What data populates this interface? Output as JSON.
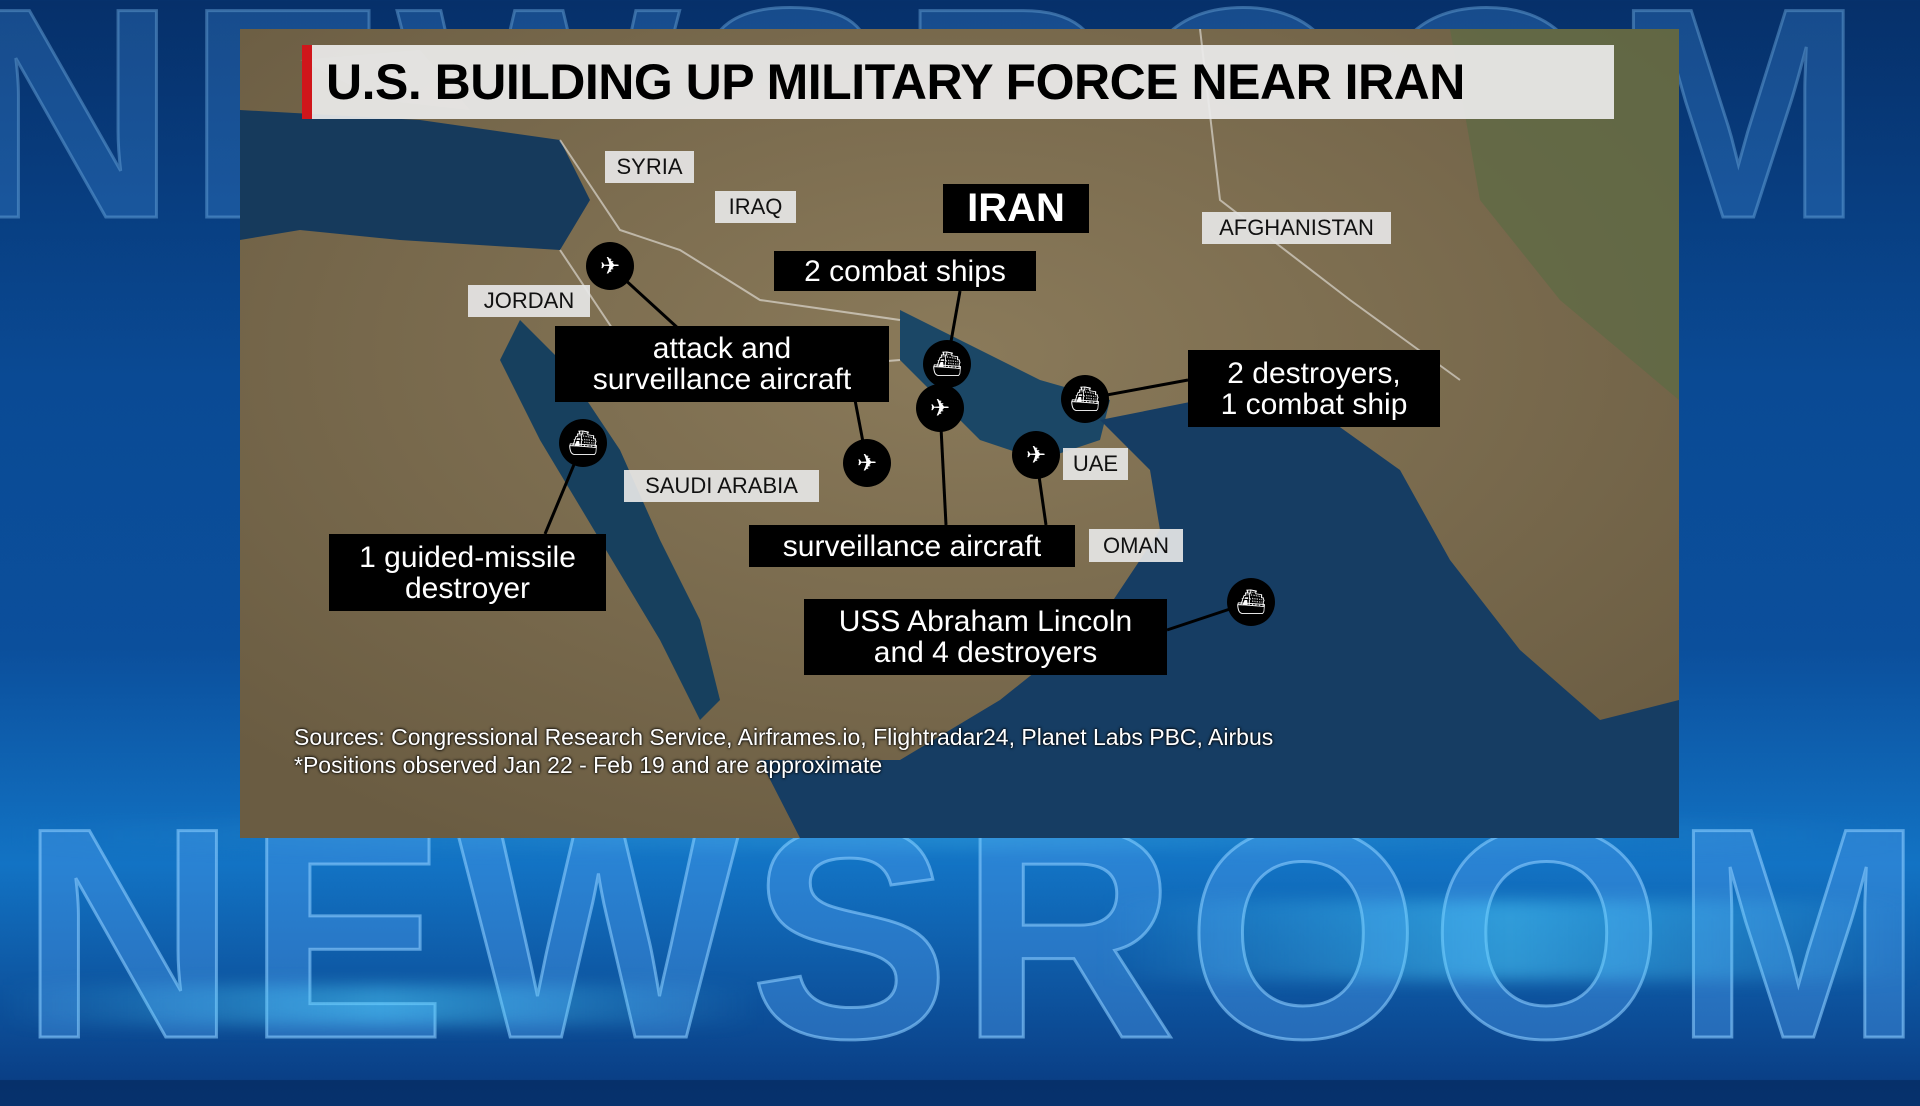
{
  "background_text": "NEWSROOM",
  "title": "U.S. BUILDING UP MILITARY FORCE NEAR IRAN",
  "countries": {
    "syria": "SYRIA",
    "iraq": "IRAQ",
    "iran": "IRAN",
    "afghanistan": "AFGHANISTAN",
    "jordan": "JORDAN",
    "saudi_arabia": "SAUDI ARABIA",
    "uae": "UAE",
    "oman": "OMAN"
  },
  "callouts": {
    "combat_ships": "2 combat ships",
    "attack_aircraft": "attack and\nsurveillance aircraft",
    "destroyers_gulf": "2 destroyers,\n1 combat ship",
    "guided_missile": "1 guided-missile\ndestroyer",
    "surveillance": "surveillance aircraft",
    "lincoln": "USS Abraham Lincoln\nand 4 destroyers"
  },
  "icons": [
    "aircraft-icon",
    "ship-icon"
  ],
  "sources": "Sources: Congressional Research Service, Airframes.io, Flightradar24, Planet Labs PBC, Airbus",
  "note": "*Positions observed Jan 22 - Feb 19 and are approximate",
  "colors": {
    "accent_red": "#d0161b",
    "callout_bg": "#000000",
    "label_bg": "#e6e6e6"
  }
}
